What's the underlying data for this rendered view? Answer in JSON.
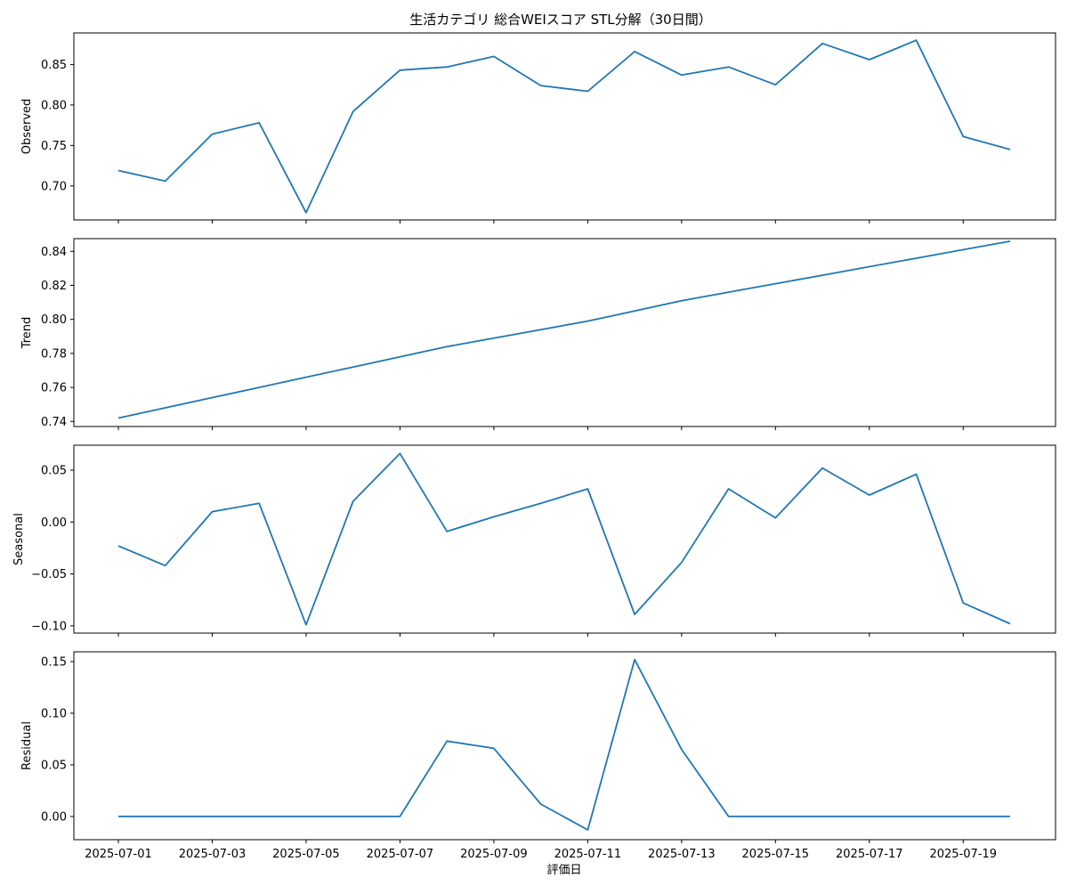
{
  "chart_data": {
    "type": "line",
    "title": "生活カテゴリ 総合WEIスコア STL分解（30日間）",
    "xlabel": "評価日",
    "x": [
      "2025-07-01",
      "2025-07-02",
      "2025-07-03",
      "2025-07-04",
      "2025-07-05",
      "2025-07-06",
      "2025-07-07",
      "2025-07-08",
      "2025-07-09",
      "2025-07-10",
      "2025-07-11",
      "2025-07-12",
      "2025-07-13",
      "2025-07-14",
      "2025-07-15",
      "2025-07-16",
      "2025-07-17",
      "2025-07-18",
      "2025-07-19",
      "2025-07-20"
    ],
    "x_tick_labels": [
      "2025-07-01",
      "2025-07-03",
      "2025-07-05",
      "2025-07-07",
      "2025-07-09",
      "2025-07-11",
      "2025-07-13",
      "2025-07-15",
      "2025-07-17",
      "2025-07-19"
    ],
    "series_color": "#1f77b4",
    "panels": [
      {
        "ylabel": "Observed",
        "values": [
          0.719,
          0.706,
          0.764,
          0.778,
          0.667,
          0.792,
          0.843,
          0.847,
          0.86,
          0.824,
          0.817,
          0.866,
          0.837,
          0.847,
          0.825,
          0.876,
          0.856,
          0.88,
          0.761,
          0.745
        ],
        "ylim": [
          0.658,
          0.889
        ],
        "yticks": [
          0.7,
          0.75,
          0.8,
          0.85
        ],
        "ytick_labels": [
          "0.70",
          "0.75",
          "0.80",
          "0.85"
        ]
      },
      {
        "ylabel": "Trend",
        "values": [
          0.742,
          0.748,
          0.754,
          0.76,
          0.766,
          0.772,
          0.778,
          0.784,
          0.789,
          0.794,
          0.799,
          0.805,
          0.811,
          0.816,
          0.821,
          0.826,
          0.831,
          0.836,
          0.841,
          0.846
        ],
        "ylim": [
          0.737,
          0.8475
        ],
        "yticks": [
          0.74,
          0.76,
          0.78,
          0.8,
          0.82,
          0.84
        ],
        "ytick_labels": [
          "0.74",
          "0.76",
          "0.78",
          "0.80",
          "0.82",
          "0.84"
        ]
      },
      {
        "ylabel": "Seasonal",
        "values": [
          -0.023,
          -0.042,
          0.01,
          0.018,
          -0.099,
          0.02,
          0.066,
          -0.009,
          0.005,
          0.018,
          0.032,
          -0.089,
          -0.039,
          0.032,
          0.004,
          0.052,
          0.026,
          0.046,
          -0.078,
          -0.098
        ],
        "ylim": [
          -0.107,
          0.074
        ],
        "yticks": [
          -0.1,
          -0.05,
          0.0,
          0.05
        ],
        "ytick_labels": [
          "−0.10",
          "−0.05",
          "0.00",
          "0.05"
        ]
      },
      {
        "ylabel": "Residual",
        "values": [
          0.0,
          0.0,
          0.0,
          0.0,
          0.0,
          0.0,
          0.0,
          0.073,
          0.066,
          0.012,
          -0.013,
          0.152,
          0.065,
          0.0,
          0.0,
          0.0,
          0.0,
          0.0,
          0.0,
          0.0
        ],
        "ylim": [
          -0.0225,
          0.1595
        ],
        "yticks": [
          0.0,
          0.05,
          0.1,
          0.15
        ],
        "ytick_labels": [
          "0.00",
          "0.05",
          "0.10",
          "0.15"
        ]
      }
    ],
    "grid": false,
    "legend": "none"
  }
}
